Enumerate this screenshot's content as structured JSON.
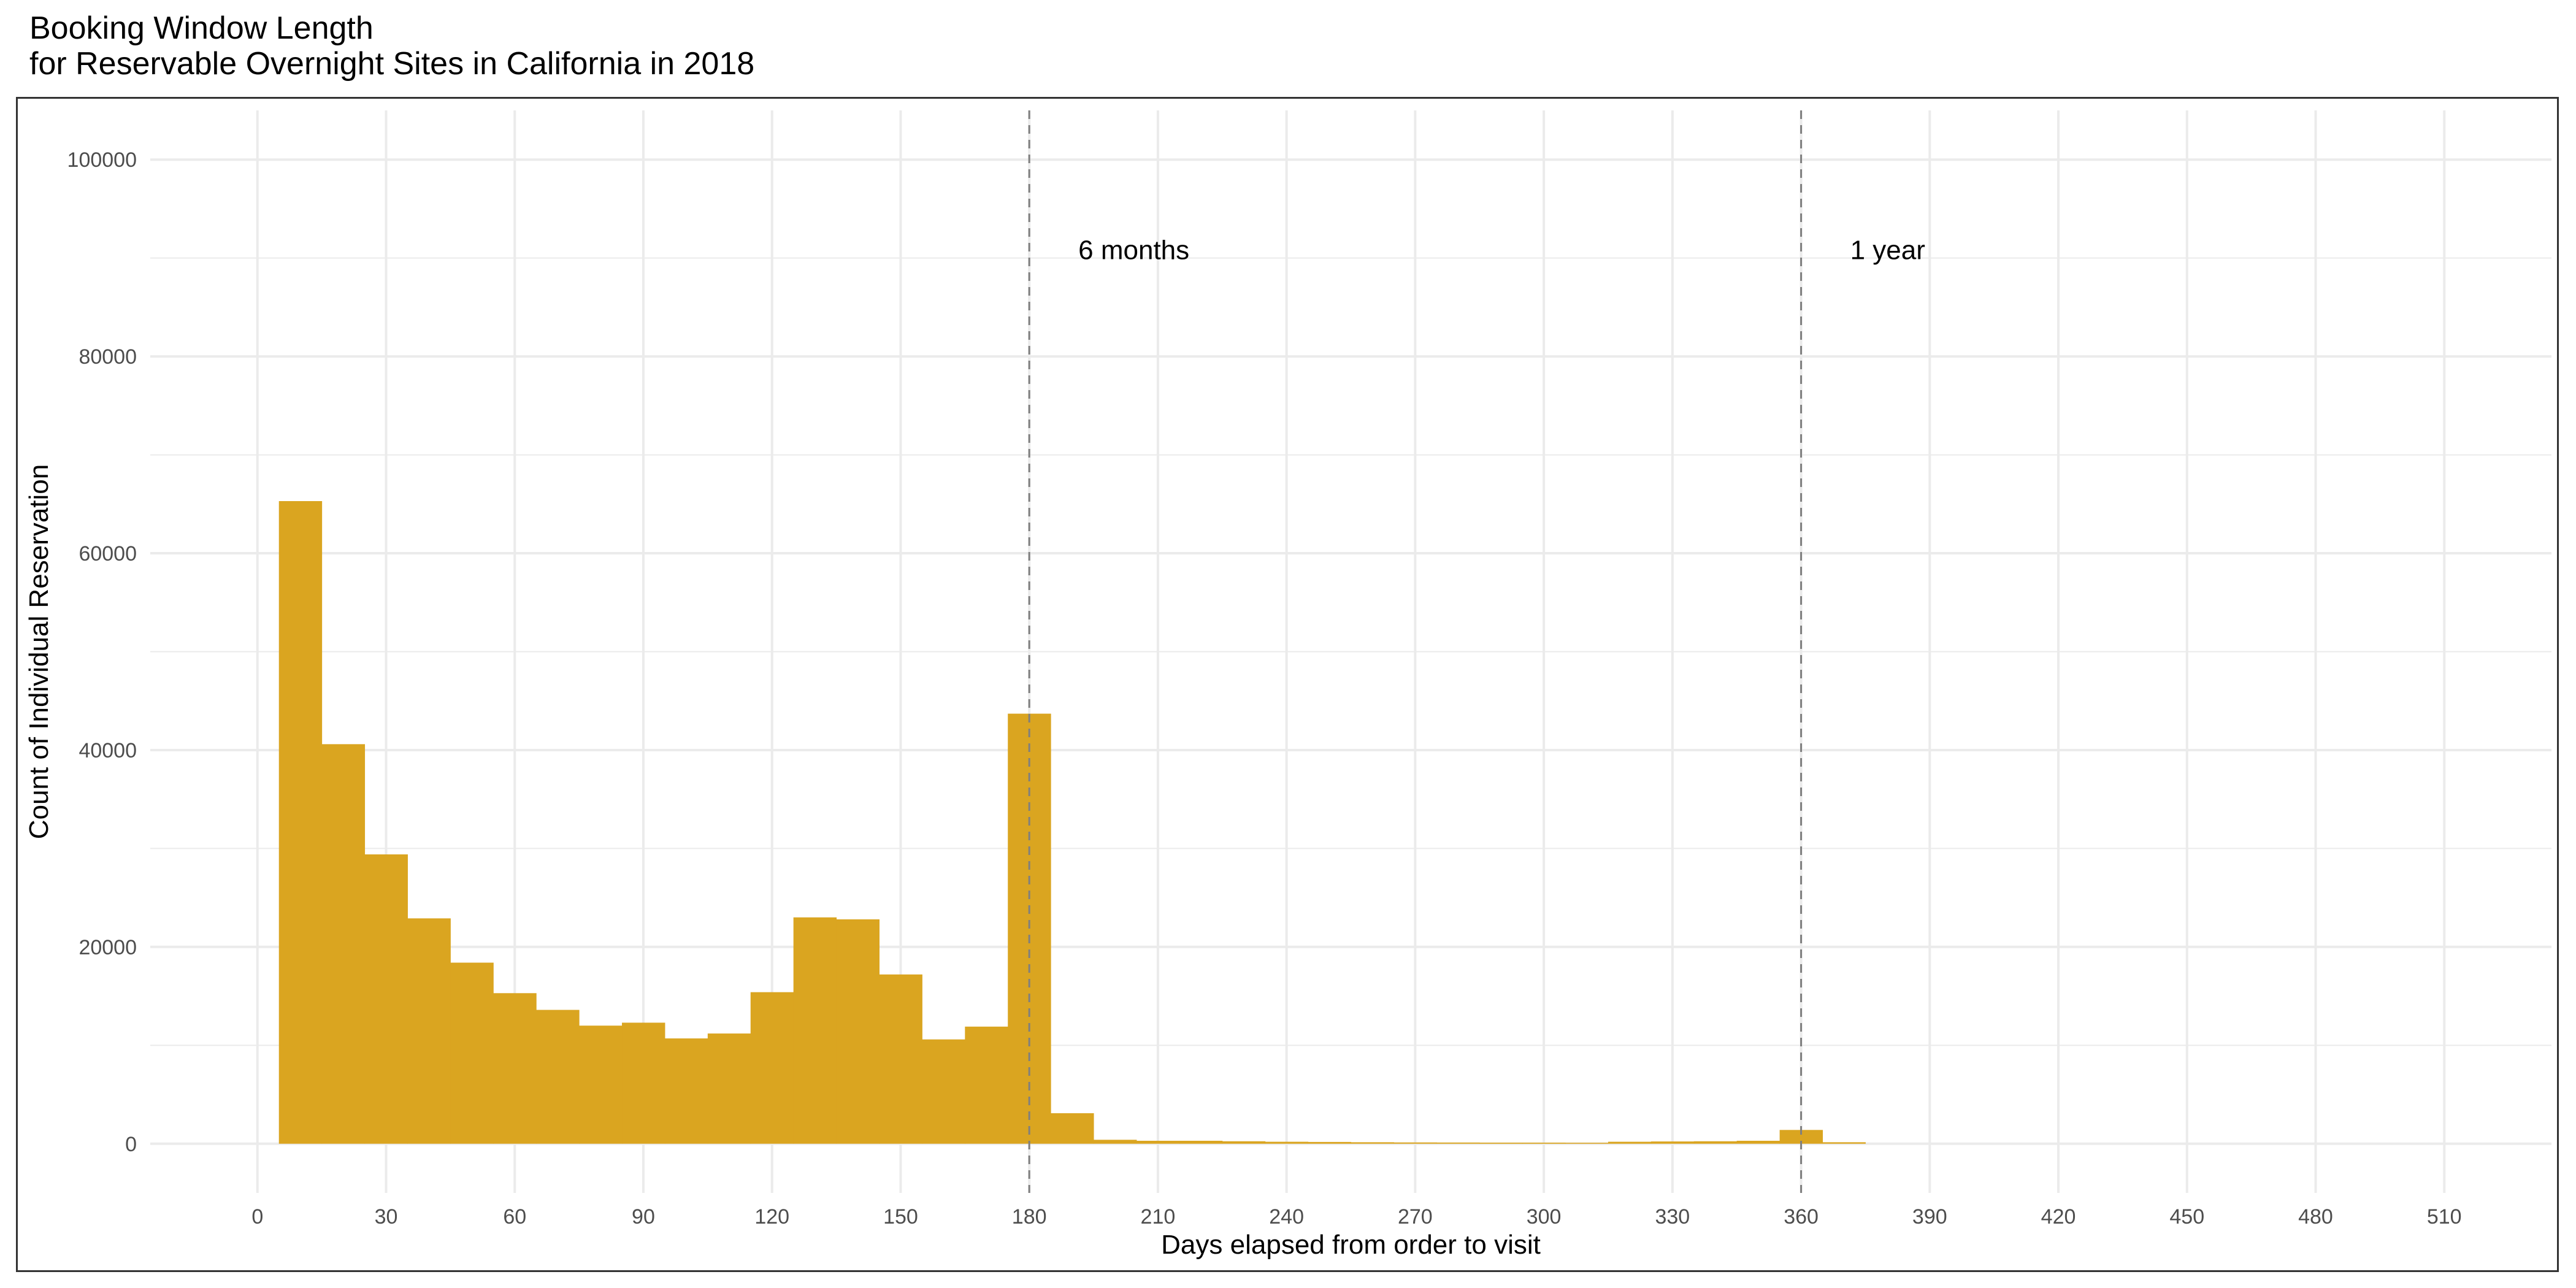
{
  "chart_data": {
    "type": "bar",
    "title": "Booking Window Length",
    "subtitle": "for Reservable Overnight Sites in California in 2018",
    "xlabel": "Days elapsed from order to visit",
    "ylabel": "Count of Individual Reservation",
    "bin_width": 10,
    "bin_start": [
      5,
      15,
      25,
      35,
      45,
      55,
      65,
      75,
      85,
      95,
      105,
      115,
      125,
      135,
      145,
      155,
      165,
      175,
      185,
      195,
      205,
      215,
      225,
      235,
      245,
      255,
      265,
      275,
      285,
      295,
      305,
      315,
      325,
      335,
      345,
      355,
      365
    ],
    "values": [
      65300,
      40600,
      29400,
      22900,
      18400,
      15300,
      13600,
      12000,
      12300,
      10700,
      11200,
      15400,
      23000,
      22800,
      17200,
      10600,
      11900,
      43700,
      3100,
      400,
      300,
      300,
      250,
      200,
      180,
      150,
      130,
      120,
      110,
      110,
      100,
      200,
      230,
      250,
      300,
      1400,
      150
    ],
    "xlim": [
      -25,
      535
    ],
    "ylim": [
      -5000,
      105000
    ],
    "x_ticks": [
      0,
      30,
      60,
      90,
      120,
      150,
      180,
      210,
      240,
      270,
      300,
      330,
      360,
      390,
      420,
      450,
      480,
      510
    ],
    "x_tick_labels": [
      "0",
      "30",
      "60",
      "90",
      "120",
      "150",
      "180",
      "210",
      "240",
      "270",
      "300",
      "330",
      "360",
      "390",
      "420",
      "450",
      "480",
      "510"
    ],
    "y_ticks": [
      0,
      20000,
      40000,
      60000,
      80000,
      100000
    ],
    "y_tick_labels": [
      "0",
      "20000",
      "40000",
      "60000",
      "80000",
      "100000"
    ],
    "reference_lines": [
      {
        "x": 180,
        "label": "6 months",
        "label_x": 180,
        "label_y": 91000
      },
      {
        "x": 360,
        "label": "1 year",
        "label_x": 360,
        "label_y": 91000
      }
    ],
    "bar_color": "#DAA520",
    "grid_color": "#EBEBEB",
    "grid": true,
    "legend": "none"
  }
}
